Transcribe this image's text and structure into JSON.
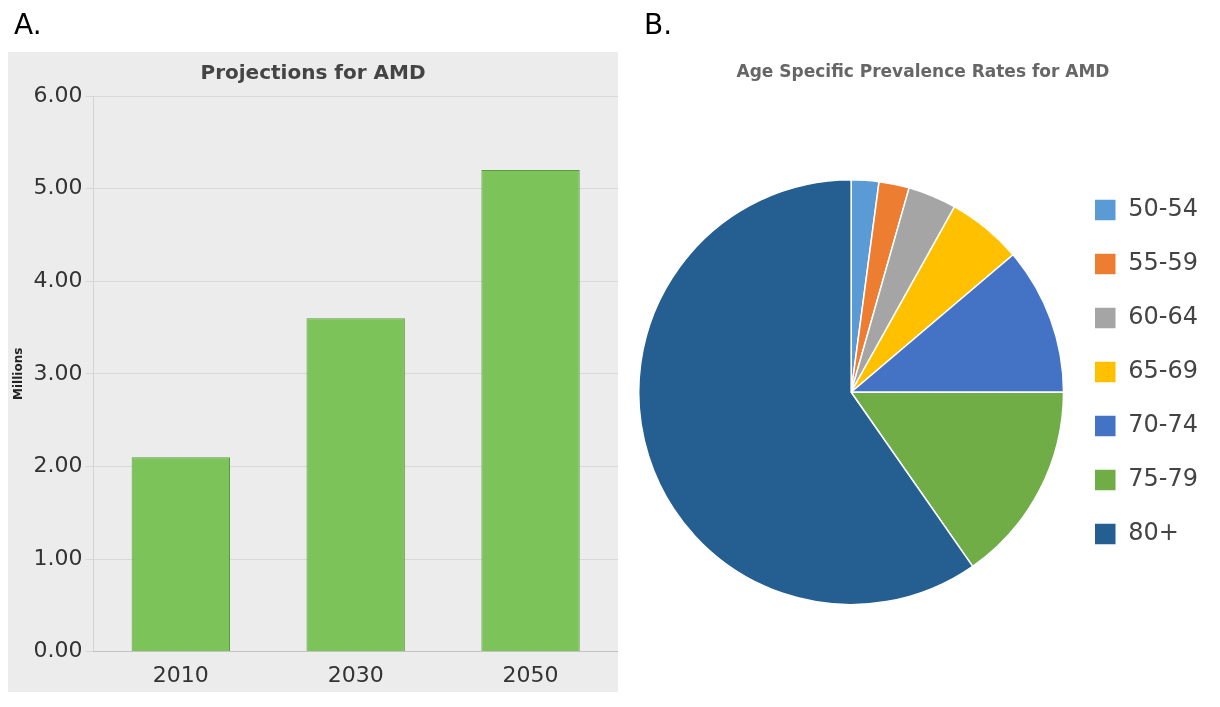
{
  "chart_data": [
    {
      "type": "bar",
      "title": "Projections for AMD",
      "ylabel": "Millions",
      "categories": [
        "2010",
        "2030",
        "2050"
      ],
      "values": [
        2.1,
        3.6,
        5.2
      ],
      "color": "#7cc35a",
      "ylim": [
        0,
        6
      ],
      "yticks": [
        {
          "value": 0,
          "label": "0.00"
        },
        {
          "value": 1,
          "label": "1.00"
        },
        {
          "value": 2,
          "label": "2.00"
        },
        {
          "value": 3,
          "label": "3.00"
        },
        {
          "value": 4,
          "label": "4.00"
        },
        {
          "value": 5,
          "label": "5.00"
        },
        {
          "value": 6,
          "label": "6.00"
        }
      ],
      "grid": "y",
      "legend": false,
      "annotations": [
        "A."
      ]
    },
    {
      "type": "pie",
      "title": "Age Specific Prevalence Rates for AMD",
      "categories": [
        "50-54",
        "55-59",
        "60-64",
        "65-69",
        "70-74",
        "75-79",
        "80+"
      ],
      "values": [
        2.1,
        2.3,
        3.7,
        5.7,
        11.2,
        15.3,
        59.7
      ],
      "colors": [
        "#5b9bd5",
        "#ed7d31",
        "#a5a5a5",
        "#ffc000",
        "#4472c4",
        "#70ad47",
        "#255e91"
      ],
      "legend": "right",
      "annotations": [
        "B."
      ]
    }
  ]
}
